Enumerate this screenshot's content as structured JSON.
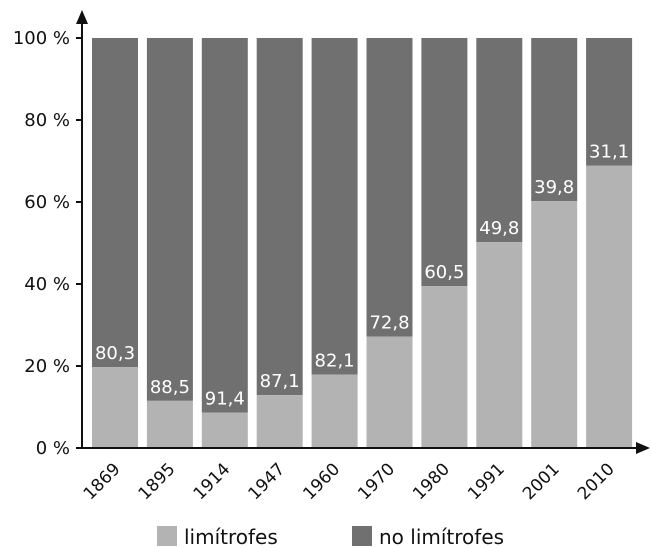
{
  "chart_data": {
    "type": "bar",
    "stacked": true,
    "categories": [
      "1869",
      "1895",
      "1914",
      "1947",
      "1960",
      "1970",
      "1980",
      "1991",
      "2001",
      "2010"
    ],
    "series": [
      {
        "name": "limítrofes",
        "values": [
          19.7,
          11.5,
          8.6,
          12.9,
          17.9,
          27.2,
          39.5,
          50.2,
          60.2,
          68.9
        ],
        "color": "#b3b3b3"
      },
      {
        "name": "no limítrofes",
        "values": [
          80.3,
          88.5,
          91.4,
          87.1,
          82.1,
          72.8,
          60.5,
          49.8,
          39.8,
          31.1
        ],
        "color": "#707070"
      }
    ],
    "data_labels": [
      "80,3",
      "88,5",
      "91,4",
      "87,1",
      "82,1",
      "72,8",
      "60,5",
      "49,8",
      "39,8",
      "31,1"
    ],
    "yticks": [
      "0 %",
      "20 %",
      "40 %",
      "60 %",
      "80 %",
      "100 %"
    ],
    "ylim": [
      0,
      100
    ],
    "legend_position": "bottom-center"
  }
}
